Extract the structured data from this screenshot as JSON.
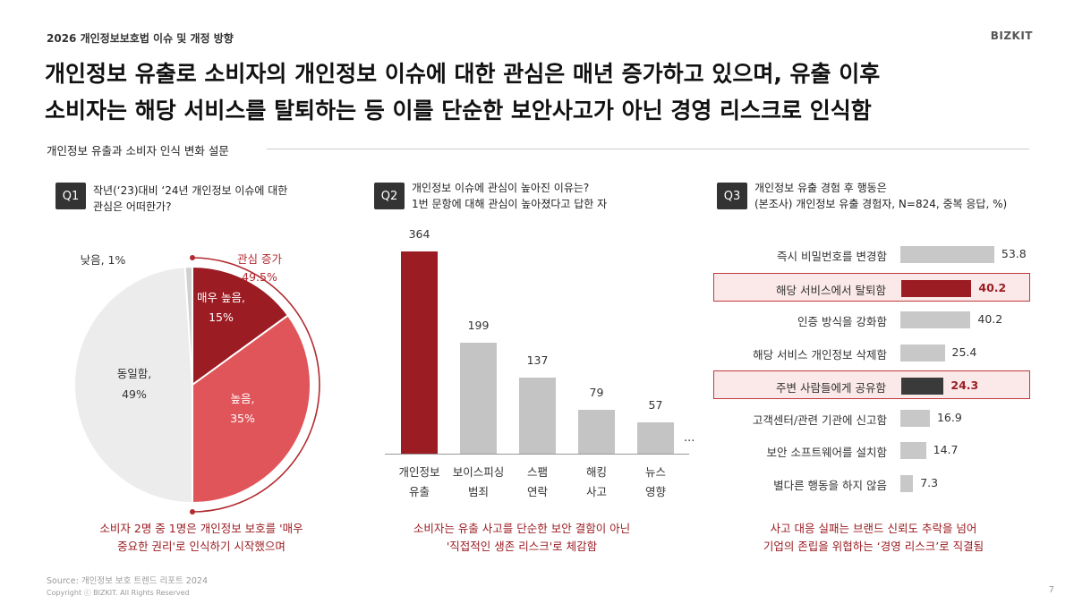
{
  "header": {
    "subtitle": "2026 개인정보보호법 이슈 및 개정 방향",
    "brand": "BIZKIT"
  },
  "title_lines": [
    "개인정보 유출로 소비자의 개인정보 이슈에 대한 관심은 매년 증가하고 있으며, 유출 이후",
    "소비자는 해당 서비스를 탈퇴하는 등 이를 단순한 보안사고가 아닌 경영 리스크로 인식함"
  ],
  "section_label": "개인정보 유출과 소비자 인식 변화 설문",
  "q1": {
    "badge": "Q1",
    "question_lines": [
      "작년(‘23)대비 ‘24년 개인정보 이슈에 대한",
      "관심은 어떠한가?"
    ],
    "callout_lines": [
      "관심 증가",
      "49.5%"
    ],
    "footnote_lines": [
      "소비자 2명 중 1명은 개인정보 보호를 '매우",
      "중요한 권리'로 인식하기 시작했으며"
    ]
  },
  "q2": {
    "badge": "Q2",
    "question_lines": [
      "개인정보 이슈에 관심이 높아진 이유는?",
      "1번 문항에 대해 관심이 높아졌다고 답한 자"
    ],
    "more": "...",
    "footnote_lines": [
      "소비자는 유출 사고를 단순한 보안 결함이 아닌",
      "'직접적인 생존 리스크'로 체감함"
    ]
  },
  "q3": {
    "badge": "Q3",
    "question_lines": [
      "개인정보 유출 경험 후 행동은",
      "(본조사) 개인정보 유출 경험자, N=824, 중복 응답, %)"
    ],
    "footnote_lines": [
      "사고 대응 실패는 브랜드 신뢰도 추락을 넘어",
      "기업의 존립을 위협하는 ‘경영 리스크’로 직결됨"
    ]
  },
  "chart_data": [
    {
      "type": "pie",
      "slices": [
        {
          "label_lines": [
            "매우 높음,",
            "15%"
          ],
          "value": 15,
          "color": "#9b1c22"
        },
        {
          "label_lines": [
            "높음,",
            "35%"
          ],
          "value": 35,
          "color": "#e0555a"
        },
        {
          "label_lines": [
            "동일함,",
            "49%"
          ],
          "value": 49,
          "color": "#ececec"
        },
        {
          "label_lines": [
            "낮음, 1%"
          ],
          "value": 1,
          "color": "#d0d0d0"
        }
      ]
    },
    {
      "type": "bar",
      "categories": [
        [
          "개인정보",
          "유출"
        ],
        [
          "보이스피싱",
          "범죄"
        ],
        [
          "스팸",
          "연락"
        ],
        [
          "해킹",
          "사고"
        ],
        [
          "뉴스",
          "영향"
        ]
      ],
      "values": [
        364,
        199,
        137,
        79,
        57
      ],
      "colors": [
        "#9b1c22",
        "#c4c4c4",
        "#c4c4c4",
        "#c4c4c4",
        "#c4c4c4"
      ]
    },
    {
      "type": "bar",
      "orientation": "horizontal",
      "categories": [
        "즉시 비밀번호를 변경함",
        "해당 서비스에서 탈퇴함",
        "인증 방식을 강화함",
        "해당 서비스 개인정보 삭제함",
        "주변 사람들에게 공유함",
        "고객센터/관련 기관에 신고함",
        "보안 소프트웨어를 설치함",
        "별다른 행동을 하지 않음"
      ],
      "values": [
        53.8,
        40.2,
        40.2,
        25.4,
        24.3,
        16.9,
        14.7,
        7.3
      ],
      "highlight": [
        false,
        true,
        false,
        false,
        true,
        false,
        false,
        false
      ],
      "bar_colors": [
        "#c8c8c8",
        "#9b1c22",
        "#c8c8c8",
        "#c8c8c8",
        "#3a3a3a",
        "#c8c8c8",
        "#c8c8c8",
        "#c8c8c8"
      ],
      "value_colors": [
        "#333333",
        "#9b1c22",
        "#333333",
        "#333333",
        "#9b1c22",
        "#333333",
        "#333333",
        "#333333"
      ]
    }
  ],
  "footer": {
    "source": "Source: 개인정보 보호 트렌드 리포트 2024",
    "copyright": "Copyright ⓒ BIZKIT. All Rights Reserved",
    "page": "7"
  }
}
